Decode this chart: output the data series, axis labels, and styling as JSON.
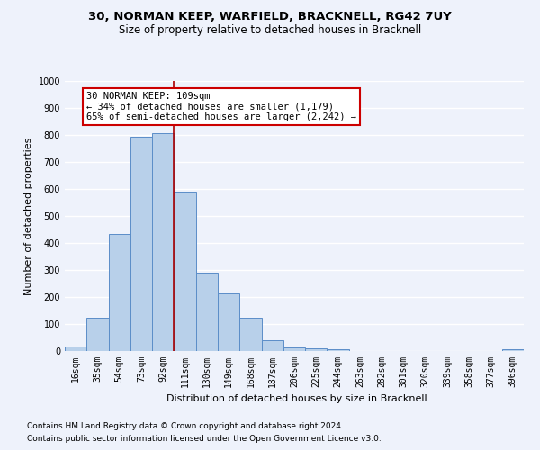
{
  "title1": "30, NORMAN KEEP, WARFIELD, BRACKNELL, RG42 7UY",
  "title2": "Size of property relative to detached houses in Bracknell",
  "xlabel": "Distribution of detached houses by size in Bracknell",
  "ylabel": "Number of detached properties",
  "categories": [
    "16sqm",
    "35sqm",
    "54sqm",
    "73sqm",
    "92sqm",
    "111sqm",
    "130sqm",
    "149sqm",
    "168sqm",
    "187sqm",
    "206sqm",
    "225sqm",
    "244sqm",
    "263sqm",
    "282sqm",
    "301sqm",
    "320sqm",
    "339sqm",
    "358sqm",
    "377sqm",
    "396sqm"
  ],
  "values": [
    18,
    125,
    435,
    793,
    808,
    590,
    290,
    212,
    125,
    40,
    15,
    10,
    8,
    0,
    0,
    0,
    0,
    0,
    0,
    0,
    8
  ],
  "bar_color": "#b8d0ea",
  "bar_edge_color": "#5b8dc8",
  "vline_x": 4.5,
  "vline_color": "#aa0000",
  "annotation_text": "30 NORMAN KEEP: 109sqm\n← 34% of detached houses are smaller (1,179)\n65% of semi-detached houses are larger (2,242) →",
  "annotation_box_color": "#ffffff",
  "annotation_box_edge": "#cc0000",
  "ylim": [
    0,
    1000
  ],
  "yticks": [
    0,
    100,
    200,
    300,
    400,
    500,
    600,
    700,
    800,
    900,
    1000
  ],
  "footer1": "Contains HM Land Registry data © Crown copyright and database right 2024.",
  "footer2": "Contains public sector information licensed under the Open Government Licence v3.0.",
  "bg_color": "#eef2fb",
  "grid_color": "#ffffff",
  "title1_fontsize": 9.5,
  "title2_fontsize": 8.5,
  "xlabel_fontsize": 8,
  "ylabel_fontsize": 8,
  "tick_fontsize": 7,
  "annotation_fontsize": 7.5,
  "footer_fontsize": 6.5
}
